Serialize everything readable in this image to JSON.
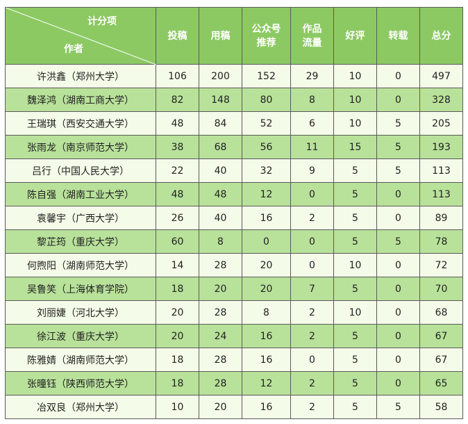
{
  "header": {
    "item_label": "计分项",
    "author_label": "作者",
    "columns": [
      "投稿",
      "用稿",
      "公众号\n推荐",
      "作品\n流量",
      "好评",
      "转载",
      "总分"
    ]
  },
  "rows": [
    {
      "name": "许洪鑫（郑州大学）",
      "values": [
        "106",
        "200",
        "152",
        "29",
        "10",
        "0",
        "497"
      ]
    },
    {
      "name": "魏泽鸿（湖南工商大学）",
      "values": [
        "82",
        "148",
        "80",
        "8",
        "10",
        "0",
        "328"
      ]
    },
    {
      "name": "王瑞琪（西安交通大学）",
      "values": [
        "48",
        "84",
        "52",
        "6",
        "10",
        "5",
        "205"
      ]
    },
    {
      "name": "张雨龙（南京师范大学）",
      "values": [
        "38",
        "68",
        "56",
        "11",
        "15",
        "5",
        "193"
      ]
    },
    {
      "name": "吕行（中国人民大学）",
      "values": [
        "22",
        "40",
        "32",
        "9",
        "5",
        "5",
        "113"
      ]
    },
    {
      "name": "陈自强（湖南工业大学）",
      "values": [
        "48",
        "48",
        "12",
        "0",
        "5",
        "0",
        "113"
      ]
    },
    {
      "name": "袁馨宇（广西大学）",
      "values": [
        "26",
        "40",
        "16",
        "2",
        "5",
        "0",
        "89"
      ]
    },
    {
      "name": "黎芷筠（重庆大学）",
      "values": [
        "60",
        "8",
        "0",
        "0",
        "5",
        "5",
        "78"
      ]
    },
    {
      "name": "何煦阳（湖南师范大学）",
      "values": [
        "14",
        "28",
        "20",
        "0",
        "10",
        "0",
        "72"
      ]
    },
    {
      "name": "吴鲁笑（上海体育学院）",
      "values": [
        "18",
        "20",
        "20",
        "7",
        "5",
        "0",
        "70"
      ]
    },
    {
      "name": "刘丽婕（河北大学）",
      "values": [
        "20",
        "28",
        "8",
        "2",
        "10",
        "0",
        "68"
      ]
    },
    {
      "name": "徐江波（重庆大学）",
      "values": [
        "20",
        "24",
        "16",
        "2",
        "5",
        "0",
        "67"
      ]
    },
    {
      "name": "陈雅婧（湖南师范大学）",
      "values": [
        "18",
        "28",
        "16",
        "0",
        "5",
        "0",
        "67"
      ]
    },
    {
      "name": "张曈钰（陕西师范大学）",
      "values": [
        "18",
        "28",
        "12",
        "2",
        "5",
        "0",
        "65"
      ]
    },
    {
      "name": "冶双良（郑州大学）",
      "values": [
        "10",
        "20",
        "16",
        "2",
        "5",
        "5",
        "58"
      ]
    }
  ]
}
